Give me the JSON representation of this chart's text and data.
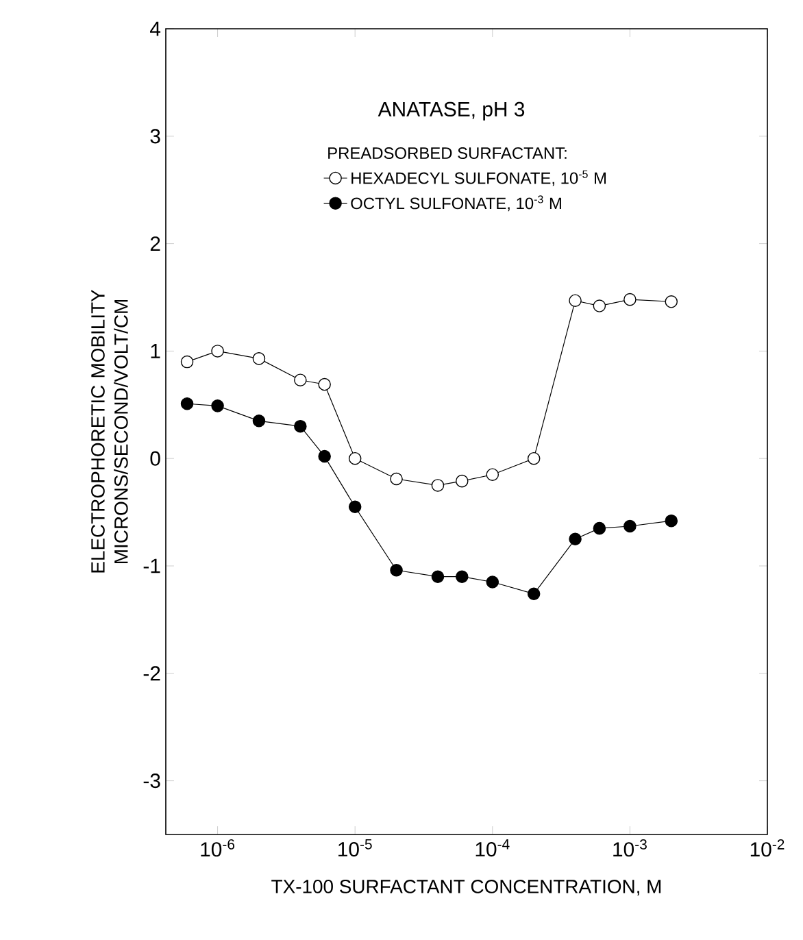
{
  "chart_data": {
    "type": "line",
    "title": "ANATASE, pH 3",
    "legend_title": "PREADSORBED SURFACTANT:",
    "xlabel": "TX-100 SURFACTANT CONCENTRATION, M",
    "ylabel": "ELECTROPHORETIC MOBILITY MICRONS/SECOND/VOLT/CM",
    "x": [
      6e-07,
      1e-06,
      2e-06,
      4e-06,
      6e-06,
      1e-05,
      2e-05,
      4e-05,
      6e-05,
      0.0001,
      0.0002,
      0.0004,
      0.0006,
      0.001,
      0.002
    ],
    "series": [
      {
        "name": "HEXADECYL SULFONATE, 10$^{-5}$ M",
        "color": "#000000",
        "values": [
          0.9,
          1.0,
          0.93,
          0.73,
          0.69,
          0.0,
          -0.19,
          -0.25,
          -0.21,
          -0.15,
          0.0,
          1.47,
          1.42,
          1.48,
          1.46
        ]
      },
      {
        "name": "OCTYL SULFONATE, 10$^{-3}$ M",
        "color": "#000000",
        "values": [
          0.51,
          0.49,
          0.35,
          0.3,
          0.02,
          -0.45,
          -1.04,
          -1.1,
          -1.1,
          -1.15,
          -1.26,
          -0.75,
          -0.65,
          -0.63,
          -0.58
        ]
      }
    ],
    "log": "x",
    "xlim": [
      4.2e-07,
      0.01
    ],
    "xticks": [
      {
        "value": 1e-06,
        "label": "10$^{-6}$"
      },
      {
        "value": 1e-05,
        "label": "10$^{-5}$"
      },
      {
        "value": 0.0001,
        "label": "10$^{-4}$"
      },
      {
        "value": 0.001,
        "label": "10$^{-3}$"
      },
      {
        "value": 0.01,
        "label": "10$^{-2}$"
      }
    ],
    "ylim": [
      -3.5,
      4
    ],
    "yticks": [
      4,
      3,
      2,
      1,
      0,
      -1,
      -2,
      -3
    ],
    "grid": false,
    "legend": "top",
    "marker": "circle",
    "line_style": "solid"
  }
}
